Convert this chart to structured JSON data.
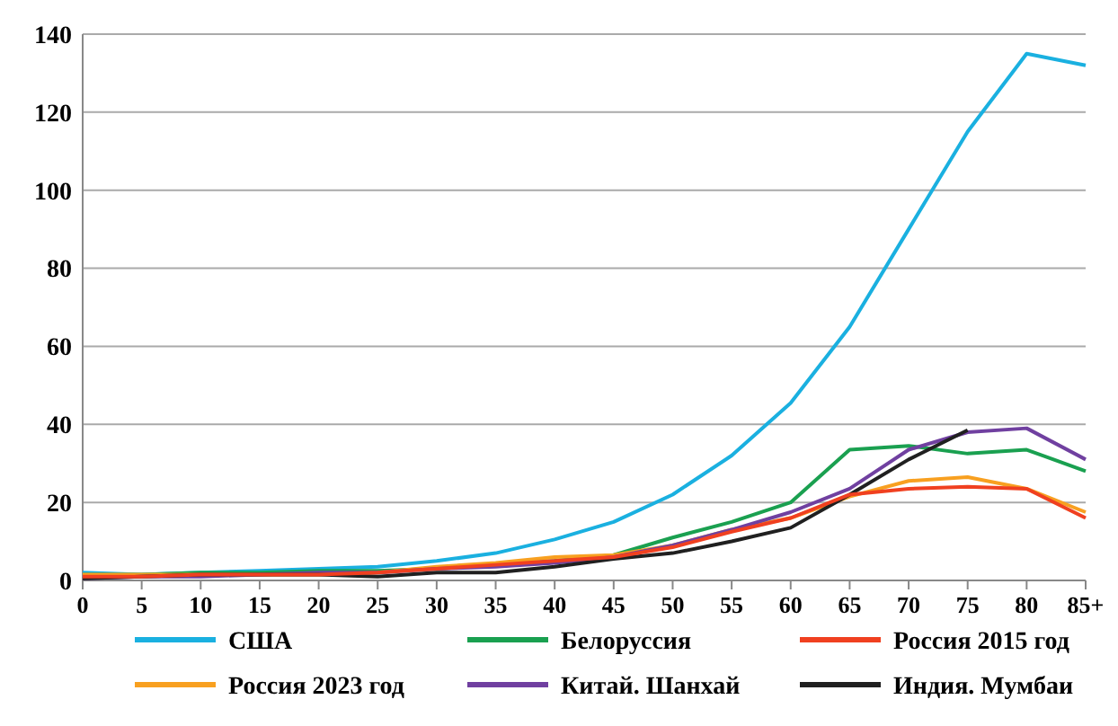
{
  "chart_data": {
    "type": "line",
    "categories": [
      "0",
      "5",
      "10",
      "15",
      "20",
      "25",
      "30",
      "35",
      "40",
      "45",
      "50",
      "55",
      "60",
      "65",
      "70",
      "75",
      "80",
      "85+"
    ],
    "ylim": [
      0,
      140
    ],
    "yticks": [
      0,
      20,
      40,
      60,
      80,
      100,
      120,
      140
    ],
    "grid": "y",
    "legend": "bottom",
    "marker": "none",
    "line_style": "solid",
    "series": [
      {
        "name": "США",
        "color": "#1ab0e0",
        "values": [
          2,
          1.5,
          2,
          2.5,
          3,
          3.5,
          5,
          7,
          10.5,
          15,
          22,
          32,
          45.5,
          65,
          90,
          115,
          135,
          132
        ]
      },
      {
        "name": "Белоруссия",
        "color": "#1aa050",
        "values": [
          1.5,
          1.5,
          2,
          2,
          2.5,
          2.5,
          3,
          4,
          5,
          6.5,
          11,
          15,
          20,
          33.5,
          34.5,
          32.5,
          33.5,
          28
        ]
      },
      {
        "name": "Россия 2015 год",
        "color": "#f04020",
        "values": [
          1,
          1,
          1.5,
          1.5,
          1.5,
          2,
          3,
          4,
          5,
          6,
          8.5,
          12.5,
          16,
          22,
          23.5,
          24,
          23.5,
          16
        ]
      },
      {
        "name": "Россия 2023 год",
        "color": "#f8a020",
        "values": [
          1.5,
          1.5,
          1.5,
          1.5,
          1.5,
          2,
          3.5,
          4.5,
          6,
          6.5,
          9,
          13,
          16,
          21.5,
          25.5,
          26.5,
          23.5,
          17.5
        ]
      },
      {
        "name": "Китай. Шанхай",
        "color": "#7040a0",
        "values": [
          0.5,
          1,
          1,
          1.5,
          2,
          2,
          3,
          3.5,
          4.5,
          6,
          9,
          13,
          17.5,
          23.5,
          33.5,
          38,
          39,
          31
        ]
      },
      {
        "name": "Индия. Мумбаи",
        "color": "#202020",
        "values": [
          0.5,
          1,
          1.5,
          1.5,
          1.5,
          1,
          2,
          2,
          3.5,
          5.5,
          7,
          10,
          13.5,
          22,
          31,
          38.5,
          null,
          null
        ]
      }
    ]
  }
}
